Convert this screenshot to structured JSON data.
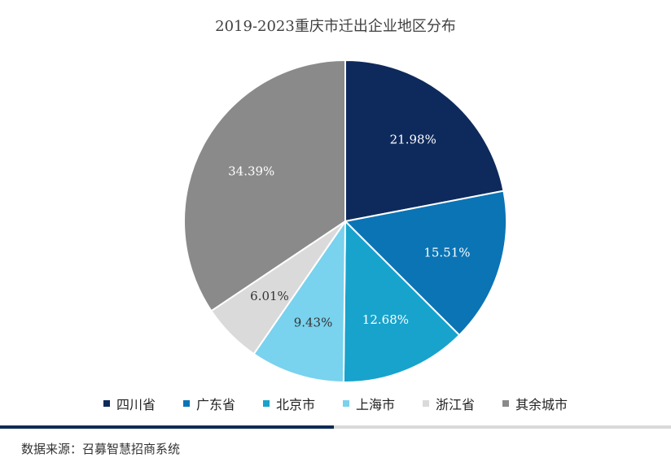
{
  "chart_data": {
    "type": "pie",
    "title": "2019-2023重庆市迁出企业地区分布",
    "categories": [
      "四川省",
      "广东省",
      "北京市",
      "上海市",
      "浙江省",
      "其余城市"
    ],
    "values": [
      21.98,
      15.51,
      12.68,
      9.43,
      6.01,
      34.39
    ],
    "labels": [
      "21.98%",
      "15.51%",
      "12.68%",
      "9.43%",
      "6.01%",
      "34.39%"
    ],
    "colors": [
      "#0e2a5c",
      "#0a74b5",
      "#17a3cc",
      "#79d2ee",
      "#dadada",
      "#8a8a8a"
    ],
    "legend_position": "bottom"
  },
  "footer": {
    "source": "数据来源：召募智慧招商系统"
  }
}
